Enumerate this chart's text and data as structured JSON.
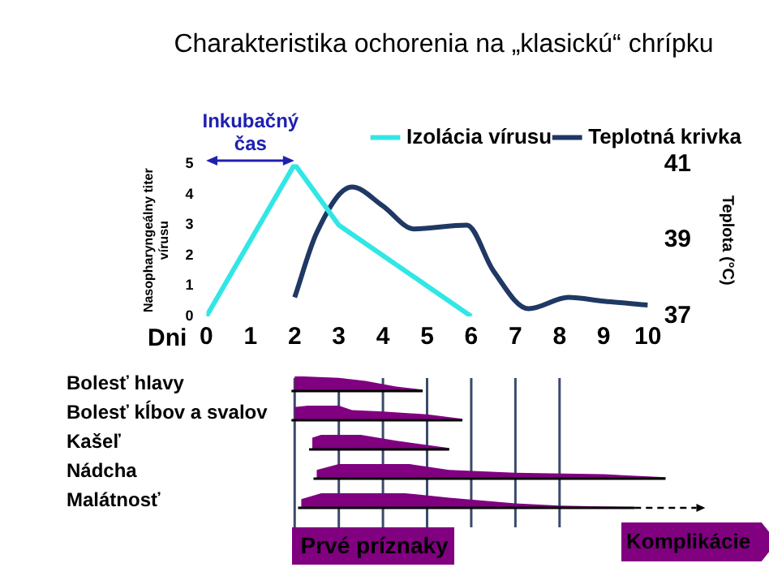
{
  "chart_data": {
    "type": "line",
    "title": "Charakteristika ochorenia na „klasickú“ chrípku",
    "xlabel": "Dni",
    "ylabel": "Nasopharyngeálny titer vírusu",
    "y2label": "Teplota (°C)",
    "xlim": [
      0,
      10
    ],
    "xticks": [
      0,
      1,
      2,
      3,
      4,
      5,
      6,
      7,
      8,
      9,
      10
    ],
    "ylim": [
      0,
      5
    ],
    "yticks": [
      0,
      1,
      2,
      3,
      4,
      5
    ],
    "y2lim": [
      37,
      41
    ],
    "y2ticks": [
      37,
      39,
      41
    ],
    "grid": false,
    "legend": "top right",
    "marker": "none",
    "series": [
      {
        "name": "Izolácia vírusu",
        "color": "#33e6e6",
        "x": [
          0,
          2,
          3,
          4,
          5,
          6
        ],
        "values": [
          0,
          5,
          3,
          2,
          1,
          0
        ]
      },
      {
        "name": "Teplotná krivka",
        "color": "#1f3864",
        "axis": "y2",
        "x": [
          2,
          2.5,
          3.3,
          4,
          4.7,
          5.9,
          6.5,
          7.3,
          8.2,
          9,
          10
        ],
        "values": [
          37.5,
          39.2,
          40.4,
          39.9,
          39.3,
          39.4,
          38.2,
          37.2,
          37.5,
          37.4,
          37.3
        ]
      }
    ],
    "annotations": [
      "Inkubačný čas",
      "Bolesť hlavy",
      "Bolesť kĺbov a svalov",
      "Kašeľ",
      "Nádcha",
      "Malátnosť",
      "Prvé príznaky",
      "Komplikácie"
    ]
  }
}
